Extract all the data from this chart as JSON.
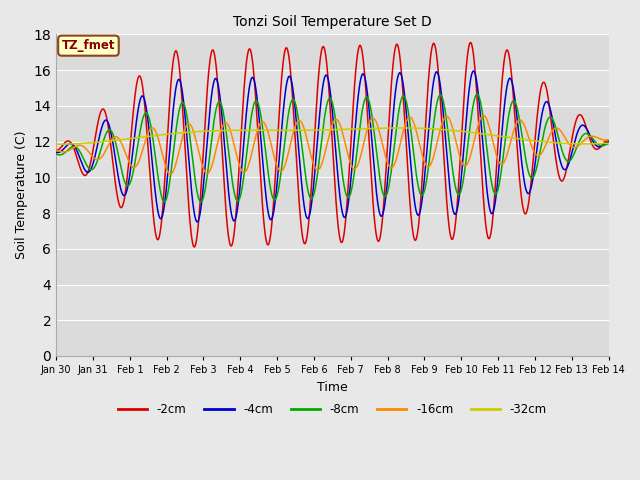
{
  "title": "Tonzi Soil Temperature Set D",
  "xlabel": "Time",
  "ylabel": "Soil Temperature (C)",
  "ylim": [
    0,
    18
  ],
  "yticks": [
    0,
    2,
    4,
    6,
    8,
    10,
    12,
    14,
    16,
    18
  ],
  "legend_label": "TZ_fmet",
  "legend_box_color": "#ffffcc",
  "legend_box_edge": "#8B4513",
  "legend_text_color": "#8B0000",
  "series": [
    {
      "label": "-2cm",
      "color": "#dd0000"
    },
    {
      "label": "-4cm",
      "color": "#0000cc"
    },
    {
      "label": "-8cm",
      "color": "#00aa00"
    },
    {
      "label": "-16cm",
      "color": "#ff8800"
    },
    {
      "label": "-32cm",
      "color": "#cccc00"
    }
  ],
  "bg_color": "#e8e8e8",
  "plot_bg_color": "#e0e0e0",
  "grid_color": "#ffffff",
  "n_points": 1440
}
